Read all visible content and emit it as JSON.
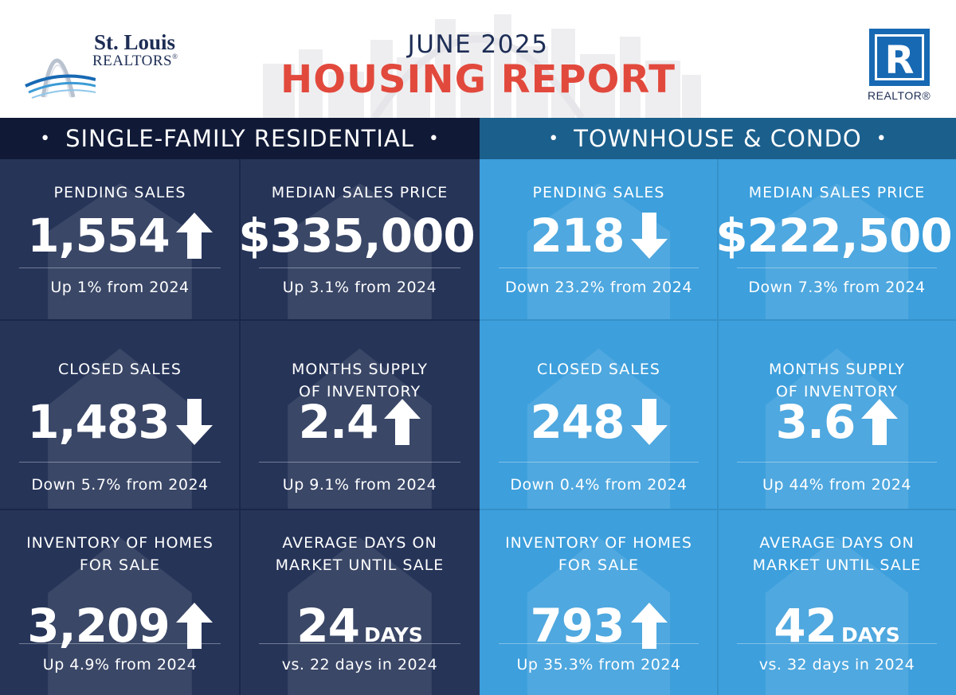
{
  "header": {
    "brand_line1": "St. Louis",
    "brand_line2": "REALTORS",
    "month": "JUNE 2025",
    "title": "HOUSING REPORT",
    "realtor_label": "REALTOR",
    "realtor_mark": "R"
  },
  "colors": {
    "navy_panel": "#1b274a",
    "navy_cell": "#263458",
    "blue_panel": "#3b9bd6",
    "title_red": "#e2493d",
    "brand_navy": "#1d2d55",
    "realtor_blue": "#1769b3"
  },
  "panels": [
    {
      "heading": "SINGLE-FAMILY RESIDENTIAL",
      "cells": [
        {
          "label1": "PENDING SALES",
          "label2": "",
          "value": "1,554",
          "unit": "",
          "trend": "up",
          "note": "Up 1% from 2024"
        },
        {
          "label1": "MEDIAN SALES PRICE",
          "label2": "",
          "value": "$335,000",
          "unit": "",
          "trend": "up",
          "note": "Up 3.1% from 2024"
        },
        {
          "label1": "CLOSED SALES",
          "label2": "",
          "value": "1,483",
          "unit": "",
          "trend": "down",
          "note": "Down 5.7% from 2024"
        },
        {
          "label1": "MONTHS SUPPLY",
          "label2": "OF INVENTORY",
          "value": "2.4",
          "unit": "",
          "trend": "up",
          "note": "Up 9.1% from 2024"
        },
        {
          "label1": "INVENTORY OF HOMES",
          "label2": "FOR SALE",
          "value": "3,209",
          "unit": "",
          "trend": "up",
          "note": "Up 4.9% from 2024"
        },
        {
          "label1": "AVERAGE DAYS ON",
          "label2": "MARKET UNTIL SALE",
          "value": "24",
          "unit": "DAYS",
          "trend": "none",
          "note": "vs. 22 days in 2024"
        }
      ]
    },
    {
      "heading": "TOWNHOUSE & CONDO",
      "cells": [
        {
          "label1": "PENDING SALES",
          "label2": "",
          "value": "218",
          "unit": "",
          "trend": "down",
          "note": "Down 23.2% from 2024"
        },
        {
          "label1": "MEDIAN SALES PRICE",
          "label2": "",
          "value": "$222,500",
          "unit": "",
          "trend": "down",
          "note": "Down 7.3% from 2024"
        },
        {
          "label1": "CLOSED SALES",
          "label2": "",
          "value": "248",
          "unit": "",
          "trend": "down",
          "note": "Down 0.4% from 2024"
        },
        {
          "label1": "MONTHS SUPPLY",
          "label2": "OF INVENTORY",
          "value": "3.6",
          "unit": "",
          "trend": "up",
          "note": "Up 44% from 2024"
        },
        {
          "label1": "INVENTORY OF HOMES",
          "label2": "FOR SALE",
          "value": "793",
          "unit": "",
          "trend": "up",
          "note": "Up 35.3% from 2024"
        },
        {
          "label1": "AVERAGE DAYS ON",
          "label2": "MARKET UNTIL SALE",
          "value": "42",
          "unit": "DAYS",
          "trend": "none",
          "note": "vs. 32 days in 2024"
        }
      ]
    }
  ]
}
